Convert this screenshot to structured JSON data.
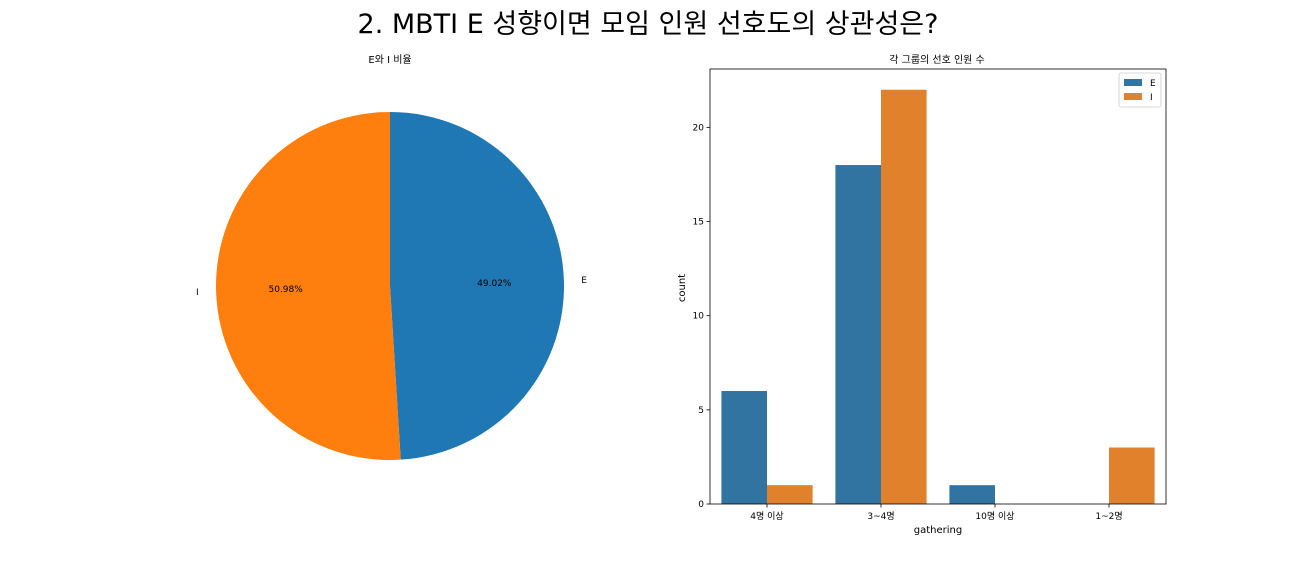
{
  "figure": {
    "suptitle": "2. MBTI E 성향이면 모임 인원 선호도의 상관성은?"
  },
  "chart_data": [
    {
      "type": "pie",
      "title": "E와 I 비율",
      "labels": [
        "E",
        "I"
      ],
      "values": [
        49.02,
        50.98
      ],
      "percent_labels": [
        "49.02%",
        "50.98%"
      ],
      "colors": [
        "#1f77b4",
        "#ff7f0e"
      ]
    },
    {
      "type": "bar",
      "title": "각 그룹의 선호 인원 수",
      "xlabel": "gathering",
      "ylabel": "count",
      "categories": [
        "4명 이상",
        "3~4명",
        "10명 이상",
        "1~2명"
      ],
      "series": [
        {
          "name": "E",
          "values": [
            6,
            18,
            1,
            0
          ],
          "color": "#3274a1"
        },
        {
          "name": "I",
          "values": [
            1,
            22,
            0,
            3
          ],
          "color": "#e1812c"
        }
      ],
      "ylim": [
        0,
        23.1
      ],
      "yticks": [
        0,
        5,
        10,
        15,
        20
      ],
      "legend": "top-right",
      "grid": false
    }
  ]
}
